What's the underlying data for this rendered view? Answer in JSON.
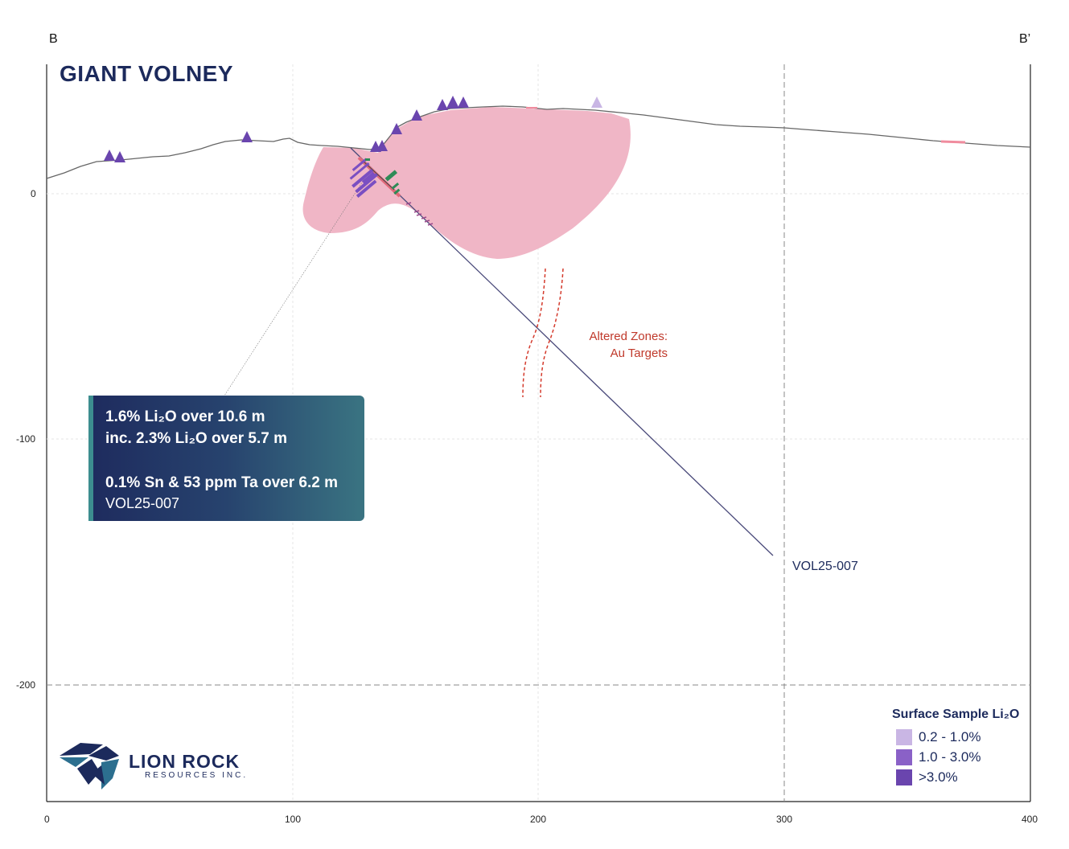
{
  "header": {
    "left_label": "B",
    "right_label": "B’",
    "title": "GIANT VOLNEY"
  },
  "callout": {
    "line1": "1.6% Li₂O over 10.6 m",
    "line2": "inc. 2.3% Li₂O over 5.7 m",
    "line3": "0.1% Sn & 53 ppm Ta over 6.2 m",
    "hole": "VOL25-007"
  },
  "drillhole": {
    "label": "VOL25-007"
  },
  "altered_zone": {
    "line1": "Altered Zones:",
    "line2": "Au Targets"
  },
  "legend": {
    "title": "Surface Sample Li₂O",
    "items": [
      {
        "label": "0.2 - 1.0%",
        "color": "#c9b6e4"
      },
      {
        "label": "1.0 - 3.0%",
        "color": "#8a61c7"
      },
      {
        "label": ">3.0%",
        "color": "#6a45ae"
      }
    ]
  },
  "logo": {
    "name": "LION ROCK",
    "subtitle": "RESOURCES INC."
  },
  "axes": {
    "x_ticks": [
      "0",
      "100",
      "200",
      "300",
      "400"
    ],
    "y_ticks": [
      "0",
      "-100",
      "-200"
    ]
  },
  "colors": {
    "pegmatite": "#f0b6c6",
    "navy": "#1c2a5c",
    "altered": "#c0392b",
    "mineralized_green": "#2e8b57"
  }
}
